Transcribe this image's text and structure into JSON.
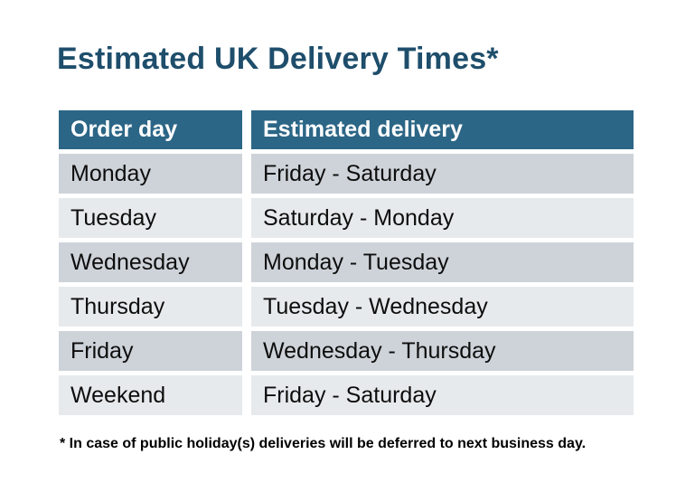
{
  "title": {
    "text": "Estimated UK Delivery Times*",
    "color": "#1e4e6b"
  },
  "table": {
    "header": {
      "order_day": "Order day",
      "estimated_delivery": "Estimated delivery",
      "background": "#2c6686",
      "text_color": "#ffffff"
    },
    "rows": [
      {
        "order_day": "Monday",
        "estimated_delivery": "Friday - Saturday"
      },
      {
        "order_day": "Tuesday",
        "estimated_delivery": "Saturday - Monday"
      },
      {
        "order_day": "Wednesday",
        "estimated_delivery": "Monday - Tuesday"
      },
      {
        "order_day": "Thursday",
        "estimated_delivery": "Tuesday - Wednesday"
      },
      {
        "order_day": "Friday",
        "estimated_delivery": "Wednesday - Thursday"
      },
      {
        "order_day": "Weekend",
        "estimated_delivery": "Friday - Saturday"
      }
    ],
    "row_colors": {
      "dark": "#ced3d9",
      "light": "#e7eaec"
    }
  },
  "footnote": {
    "text": "* In case of public holiday(s) deliveries will be deferred to next business day."
  }
}
